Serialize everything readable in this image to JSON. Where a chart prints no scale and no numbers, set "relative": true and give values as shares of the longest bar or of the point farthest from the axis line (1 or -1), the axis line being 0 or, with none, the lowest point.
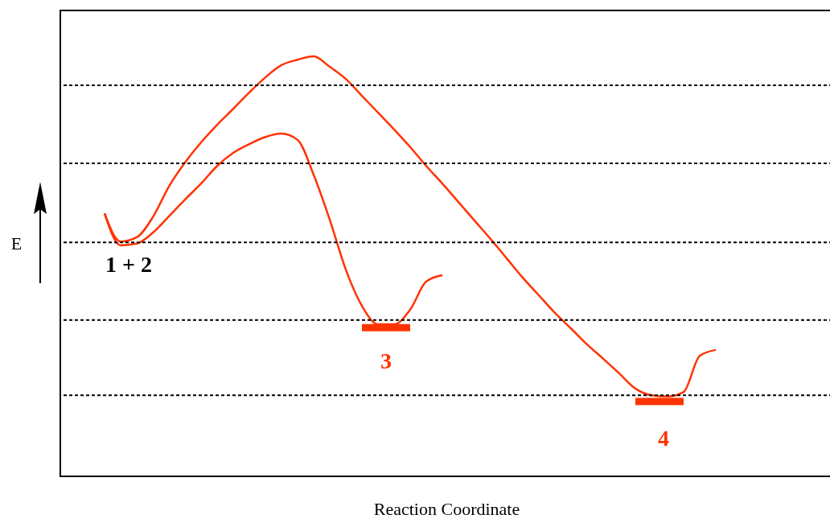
{
  "chart_data": {
    "type": "line",
    "relative": true,
    "xlabel": "Reaction Coordinate",
    "ylabel": "E",
    "categories": [
      null,
      null,
      null,
      null,
      null,
      null,
      null,
      null,
      null,
      null,
      null,
      null,
      null,
      null,
      null,
      null,
      null,
      null,
      null,
      null,
      null,
      null,
      null,
      null,
      null,
      null,
      null,
      null,
      null,
      null,
      null,
      null,
      null,
      null,
      null,
      null,
      null,
      null,
      null
    ],
    "series": [
      {
        "color": "#ff3300",
        "values": [
          0.626,
          0.559,
          0.569,
          0.617,
          0.69,
          0.747,
          0.795,
          0.837,
          0.875,
          0.914,
          0.95,
          0.979,
          0.992,
          1,
          0.975,
          0.946,
          0.906,
          0.866,
          0.826,
          0.784,
          0.739,
          0.697,
          0.653,
          0.609,
          0.565,
          0.519,
          0.473,
          0.431,
          0.389,
          0.352,
          0.314,
          0.28,
          0.245,
          0.209,
          0.193,
          0.19,
          0.201,
          0.287,
          0.301
        ]
      },
      {
        "color": "#ff3300",
        "values": [
          0.626,
          0.55,
          0.554,
          0.58,
          0.619,
          0.659,
          0.697,
          0.739,
          0.77,
          0.791,
          0.808,
          0.816,
          0.801,
          0.718,
          0.611,
          0.492,
          0.406,
          0.362,
          0.362,
          0.397,
          0.464,
          0.479,
          null,
          null,
          null,
          null,
          null,
          null,
          null,
          null,
          null,
          null,
          null,
          null,
          null,
          null,
          null,
          null,
          null
        ]
      },
      {
        "color": "#ff3300",
        "values": [
          null,
          null,
          null,
          null,
          null,
          null,
          null,
          null,
          null,
          null,
          null,
          null,
          null,
          null,
          null,
          null,
          0.354,
          0.354,
          0.354,
          0.354,
          null,
          null,
          null,
          null,
          null,
          null,
          null,
          null,
          null,
          null,
          null,
          null,
          null,
          null,
          null,
          null,
          null,
          null,
          null
        ]
      },
      {
        "color": "#ff3300",
        "values": [
          null,
          null,
          null,
          null,
          null,
          null,
          null,
          null,
          null,
          null,
          null,
          null,
          null,
          null,
          null,
          null,
          null,
          null,
          null,
          null,
          null,
          null,
          null,
          null,
          null,
          null,
          null,
          null,
          null,
          null,
          null,
          null,
          null,
          0.178,
          0.178,
          0.178,
          0.178,
          null,
          null
        ]
      }
    ],
    "ref_lines": [
      {
        "axis": "y",
        "value": 0.931,
        "line_style": "dashed",
        "color": "#000000"
      },
      {
        "axis": "y",
        "value": 0.745,
        "line_style": "dashed",
        "color": "#000000"
      },
      {
        "axis": "y",
        "value": 0.557,
        "line_style": "dashed",
        "color": "#000000"
      },
      {
        "axis": "y",
        "value": 0.372,
        "line_style": "dashed",
        "color": "#000000"
      },
      {
        "axis": "y",
        "value": 0.193,
        "line_style": "dashed",
        "color": "#000000"
      }
    ],
    "annotations": [
      "1 + 2",
      "3",
      "4"
    ],
    "grid": false
  }
}
